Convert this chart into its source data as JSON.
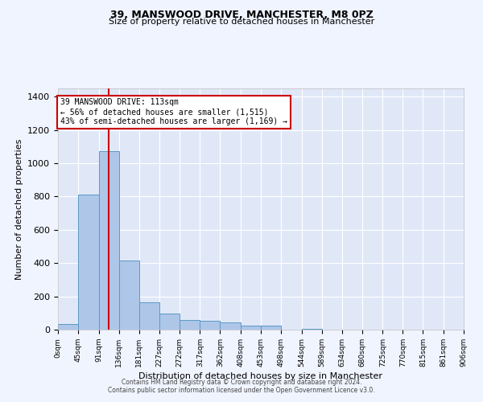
{
  "title": "39, MANSWOOD DRIVE, MANCHESTER, M8 0PZ",
  "subtitle": "Size of property relative to detached houses in Manchester",
  "xlabel": "Distribution of detached houses by size in Manchester",
  "ylabel": "Number of detached properties",
  "annotation_line1": "39 MANSWOOD DRIVE: 113sqm",
  "annotation_line2": "← 56% of detached houses are smaller (1,515)",
  "annotation_line3": "43% of semi-detached houses are larger (1,169) →",
  "footer_line1": "Contains HM Land Registry data © Crown copyright and database right 2024.",
  "footer_line2": "Contains public sector information licensed under the Open Government Licence v3.0.",
  "property_size": 113,
  "bar_edges": [
    0,
    45,
    91,
    136,
    181,
    227,
    272,
    317,
    362,
    408,
    453,
    498,
    544,
    589,
    634,
    680,
    725,
    770,
    815,
    861,
    906
  ],
  "bar_heights": [
    35,
    810,
    1075,
    415,
    165,
    95,
    60,
    55,
    45,
    25,
    25,
    0,
    5,
    0,
    0,
    0,
    0,
    0,
    0,
    0
  ],
  "bar_color": "#aec6e8",
  "bar_edgecolor": "#5a9ac5",
  "vline_color": "#cc0000",
  "vline_x": 113,
  "ylim": [
    0,
    1450
  ],
  "yticks": [
    0,
    200,
    400,
    600,
    800,
    1000,
    1200,
    1400
  ],
  "bg_color": "#f0f4ff",
  "plot_bg_color": "#e0e8f8",
  "grid_color": "#ffffff",
  "annotation_box_edgecolor": "#cc0000",
  "tick_labels": [
    "0sqm",
    "45sqm",
    "91sqm",
    "136sqm",
    "181sqm",
    "227sqm",
    "272sqm",
    "317sqm",
    "362sqm",
    "408sqm",
    "453sqm",
    "498sqm",
    "544sqm",
    "589sqm",
    "634sqm",
    "680sqm",
    "725sqm",
    "770sqm",
    "815sqm",
    "861sqm",
    "906sqm"
  ]
}
